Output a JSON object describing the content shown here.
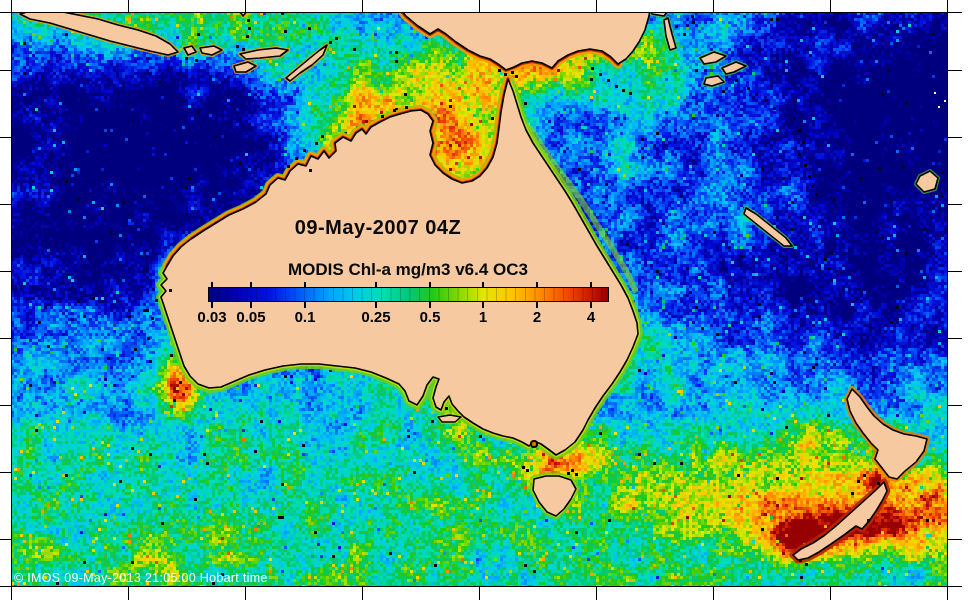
{
  "map": {
    "date_label": "09-May-2007 04Z",
    "product_label": "MODIS Chl-a mg/m3 v6.4 OC3",
    "copyright": "© IMOS 09-May-2013 21:05:00 Hobart time",
    "land_color": "#F6C9A1",
    "coastline_color": "#000000",
    "frame_color": "#000000",
    "background_color": "#FFFFFF",
    "copyright_text_color": "#FFFFFF",
    "region": "Australia / New Zealand / Coral Sea / Tasman Sea"
  },
  "colorbar": {
    "title": "MODIS Chl-a mg/m3 v6.4 OC3",
    "units": "mg/m3",
    "scale": "log",
    "min_value": 0.029,
    "max_value": 5.0,
    "tick_labels": [
      "0.03",
      "0.05",
      "0.1",
      "0.25",
      "0.5",
      "1",
      "2",
      "4"
    ],
    "tick_values": [
      0.03,
      0.05,
      0.1,
      0.25,
      0.5,
      1,
      2,
      4
    ],
    "stops": [
      {
        "t": 0.0,
        "color": "#00007F"
      },
      {
        "t": 0.07,
        "color": "#0000B3"
      },
      {
        "t": 0.15,
        "color": "#0013E0"
      },
      {
        "t": 0.22,
        "color": "#0052F8"
      },
      {
        "t": 0.3,
        "color": "#00A2FF"
      },
      {
        "t": 0.37,
        "color": "#00CDE8"
      },
      {
        "t": 0.44,
        "color": "#00DDB0"
      },
      {
        "t": 0.5,
        "color": "#00C878"
      },
      {
        "t": 0.56,
        "color": "#22C818"
      },
      {
        "t": 0.62,
        "color": "#7CD800"
      },
      {
        "t": 0.69,
        "color": "#E6E600"
      },
      {
        "t": 0.76,
        "color": "#FFC300"
      },
      {
        "t": 0.83,
        "color": "#FF8C00"
      },
      {
        "t": 0.9,
        "color": "#F04800"
      },
      {
        "t": 0.96,
        "color": "#C81400"
      },
      {
        "t": 1.0,
        "color": "#960000"
      }
    ]
  }
}
